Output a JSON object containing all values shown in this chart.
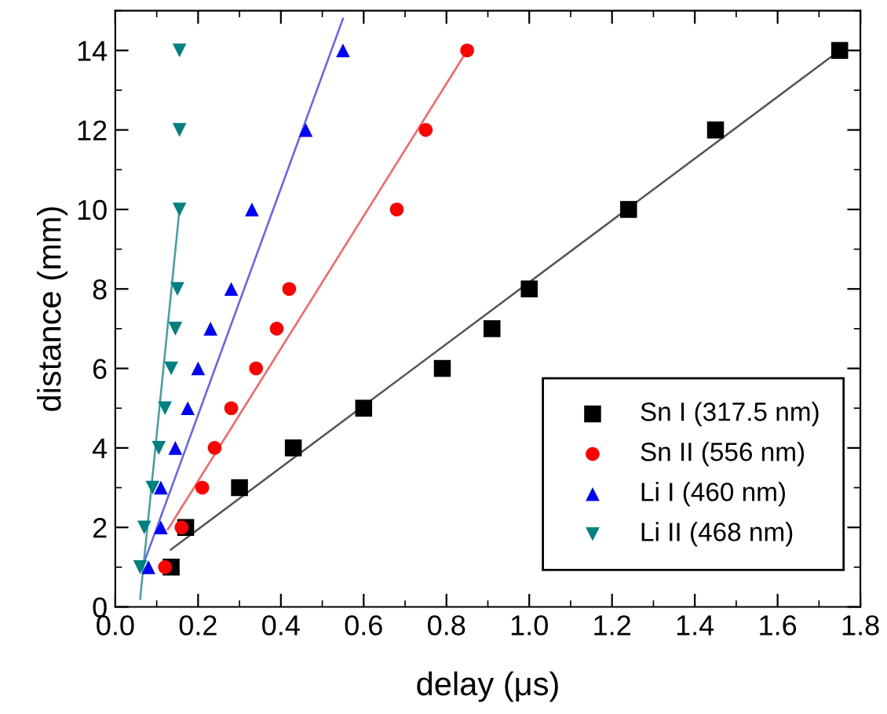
{
  "chart_data": {
    "type": "scatter",
    "xlabel": "delay (μs)",
    "ylabel": "distance (mm)",
    "xlim": [
      0,
      1.8
    ],
    "ylim": [
      0,
      15
    ],
    "xticks": [
      {
        "value": 0,
        "label": "0.0"
      },
      0.2,
      0.4,
      0.6,
      0.8,
      {
        "value": 1,
        "label": "1.0"
      },
      1.2,
      1.4,
      1.6,
      1.8
    ],
    "yticks": [
      0,
      2,
      4,
      6,
      8,
      10,
      12,
      14
    ],
    "grid": false,
    "legend": "bottom right",
    "series": [
      {
        "name": "Sn I (317.5 nm)",
        "color": "#000000",
        "marker": "square",
        "x": [
          0.135,
          0.17,
          0.3,
          0.43,
          0.6,
          0.79,
          0.91,
          1.0,
          1.24,
          1.45,
          1.75
        ],
        "values": [
          1,
          2,
          3,
          4,
          5,
          6,
          7,
          8,
          10,
          12,
          14
        ]
      },
      {
        "name": "Sn II (556 nm)",
        "color": "#ff0000",
        "marker": "circle",
        "x": [
          0.12,
          0.16,
          0.21,
          0.24,
          0.28,
          0.34,
          0.39,
          0.42,
          0.68,
          0.75,
          0.85
        ],
        "values": [
          1,
          2,
          3,
          4,
          5,
          6,
          7,
          8,
          10,
          12,
          14
        ]
      },
      {
        "name": "Li I (460 nm)",
        "color": "#0000ff",
        "marker": "triangle",
        "x": [
          0.08,
          0.11,
          0.11,
          0.145,
          0.175,
          0.2,
          0.23,
          0.28,
          0.33,
          0.46,
          0.55
        ],
        "values": [
          1,
          2,
          3,
          4,
          5,
          6,
          7,
          8,
          10,
          12,
          14
        ]
      },
      {
        "name": "Li II (468 nm)",
        "color": "#008080",
        "marker": "triangle_down",
        "x": [
          0.06,
          0.07,
          0.09,
          0.105,
          0.12,
          0.135,
          0.145,
          0.15,
          0.155,
          0.155,
          0.155
        ],
        "values": [
          1,
          2,
          3,
          4,
          5,
          6,
          7,
          8,
          10,
          12,
          14
        ]
      },
      {
        "type": "line",
        "color": "#555555",
        "x": [
          0.134,
          1.75
        ],
        "values": [
          1.44,
          14
        ]
      },
      {
        "type": "line",
        "color": "#ff6060",
        "x": [
          0.127,
          0.85
        ],
        "values": [
          1.95,
          14
        ]
      },
      {
        "type": "line",
        "color": "#6060ff",
        "x": [
          0.07,
          0.55
        ],
        "values": [
          1.13,
          14.8
        ]
      },
      {
        "type": "line",
        "color": "#40a0a0",
        "x": [
          0.06,
          0.155
        ],
        "values": [
          0.2,
          10
        ]
      }
    ]
  }
}
